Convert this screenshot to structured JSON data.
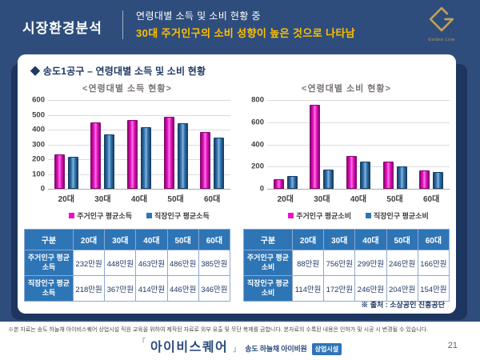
{
  "header": {
    "section_title": "시장환경분석",
    "subtitle_line1": "연령대별 소득 및 소비 현황 중",
    "subtitle_line2": "30대 주거인구의 소비 성향이 높은 것으로 나타남",
    "logo_text": "Golden Line"
  },
  "card": {
    "title": "◆ 송도1공구 – 연령대별 소득 및 소비 현황",
    "source_note": "※ 출처 : 소상공인 진흥공단"
  },
  "chart_data": [
    {
      "type": "bar",
      "title": "<연령대별 소득 현황>",
      "categories": [
        "20대",
        "30대",
        "40대",
        "50대",
        "60대"
      ],
      "series": [
        {
          "name": "주거인구 평균소득",
          "color": "#EE10C6",
          "values": [
            232,
            448,
            463,
            486,
            385
          ]
        },
        {
          "name": "직장인구 평균소득",
          "color": "#2E75B6",
          "values": [
            218,
            367,
            414,
            446,
            346
          ]
        }
      ],
      "ylabel": "",
      "xlabel": "",
      "ylim": [
        0,
        600
      ],
      "ytick_step": 100,
      "grid": true,
      "legend_position": "bottom"
    },
    {
      "type": "bar",
      "title": "<연령대별 소비 현황>",
      "categories": [
        "20대",
        "30대",
        "40대",
        "50대",
        "60대"
      ],
      "series": [
        {
          "name": "주거인구 평균소비",
          "color": "#EE10C6",
          "values": [
            88,
            756,
            299,
            246,
            166
          ]
        },
        {
          "name": "직장인구 평균소비",
          "color": "#2E75B6",
          "values": [
            114,
            172,
            246,
            204,
            154
          ]
        }
      ],
      "ylabel": "",
      "xlabel": "",
      "ylim": [
        0,
        800
      ],
      "ytick_step": 200,
      "grid": true,
      "legend_position": "bottom"
    }
  ],
  "tables": [
    {
      "headers": [
        "구분",
        "20대",
        "30대",
        "40대",
        "50대",
        "60대"
      ],
      "rows": [
        {
          "label": "주거인구 평균소득",
          "values": [
            "232만원",
            "448만원",
            "463만원",
            "486만원",
            "385만원"
          ]
        },
        {
          "label": "직장인구 평균소득",
          "values": [
            "218만원",
            "367만원",
            "414만원",
            "446만원",
            "346만원"
          ]
        }
      ]
    },
    {
      "headers": [
        "구분",
        "20대",
        "30대",
        "40대",
        "50대",
        "60대"
      ],
      "rows": [
        {
          "label": "주거인구 평균소비",
          "values": [
            "88만원",
            "756만원",
            "299만원",
            "246만원",
            "166만원"
          ]
        },
        {
          "label": "직장인구 평균소비",
          "values": [
            "114만원",
            "172만원",
            "246만원",
            "204만원",
            "154만원"
          ]
        }
      ]
    }
  ],
  "footer": {
    "disclaimer": "※본 자료는 송도 하늘채 아이비스퀘어 상업시설 직원 교육을 위하여 제작된 자료로 외부 유출 및 무단 복제를 금합니다. 본자료의 수록된 내용은 인허가 및 시공 시 변경될 수 있습니다.",
    "logo_main": "아이비스퀘어",
    "logo_sub": "송도 하늘채 아이비원",
    "logo_badge": "상업시설",
    "page_number": "21"
  },
  "colors": {
    "background_navy": "#2E4D7C",
    "shadow_navy": "#1D3660",
    "dark_navy_text": "#1F3864",
    "highlight_yellow": "#FFC000",
    "bar_magenta": "#EE10C6",
    "bar_blue": "#2E75B6",
    "table_header_blue": "#2E75B6",
    "logo_gold": "#BFA158"
  }
}
